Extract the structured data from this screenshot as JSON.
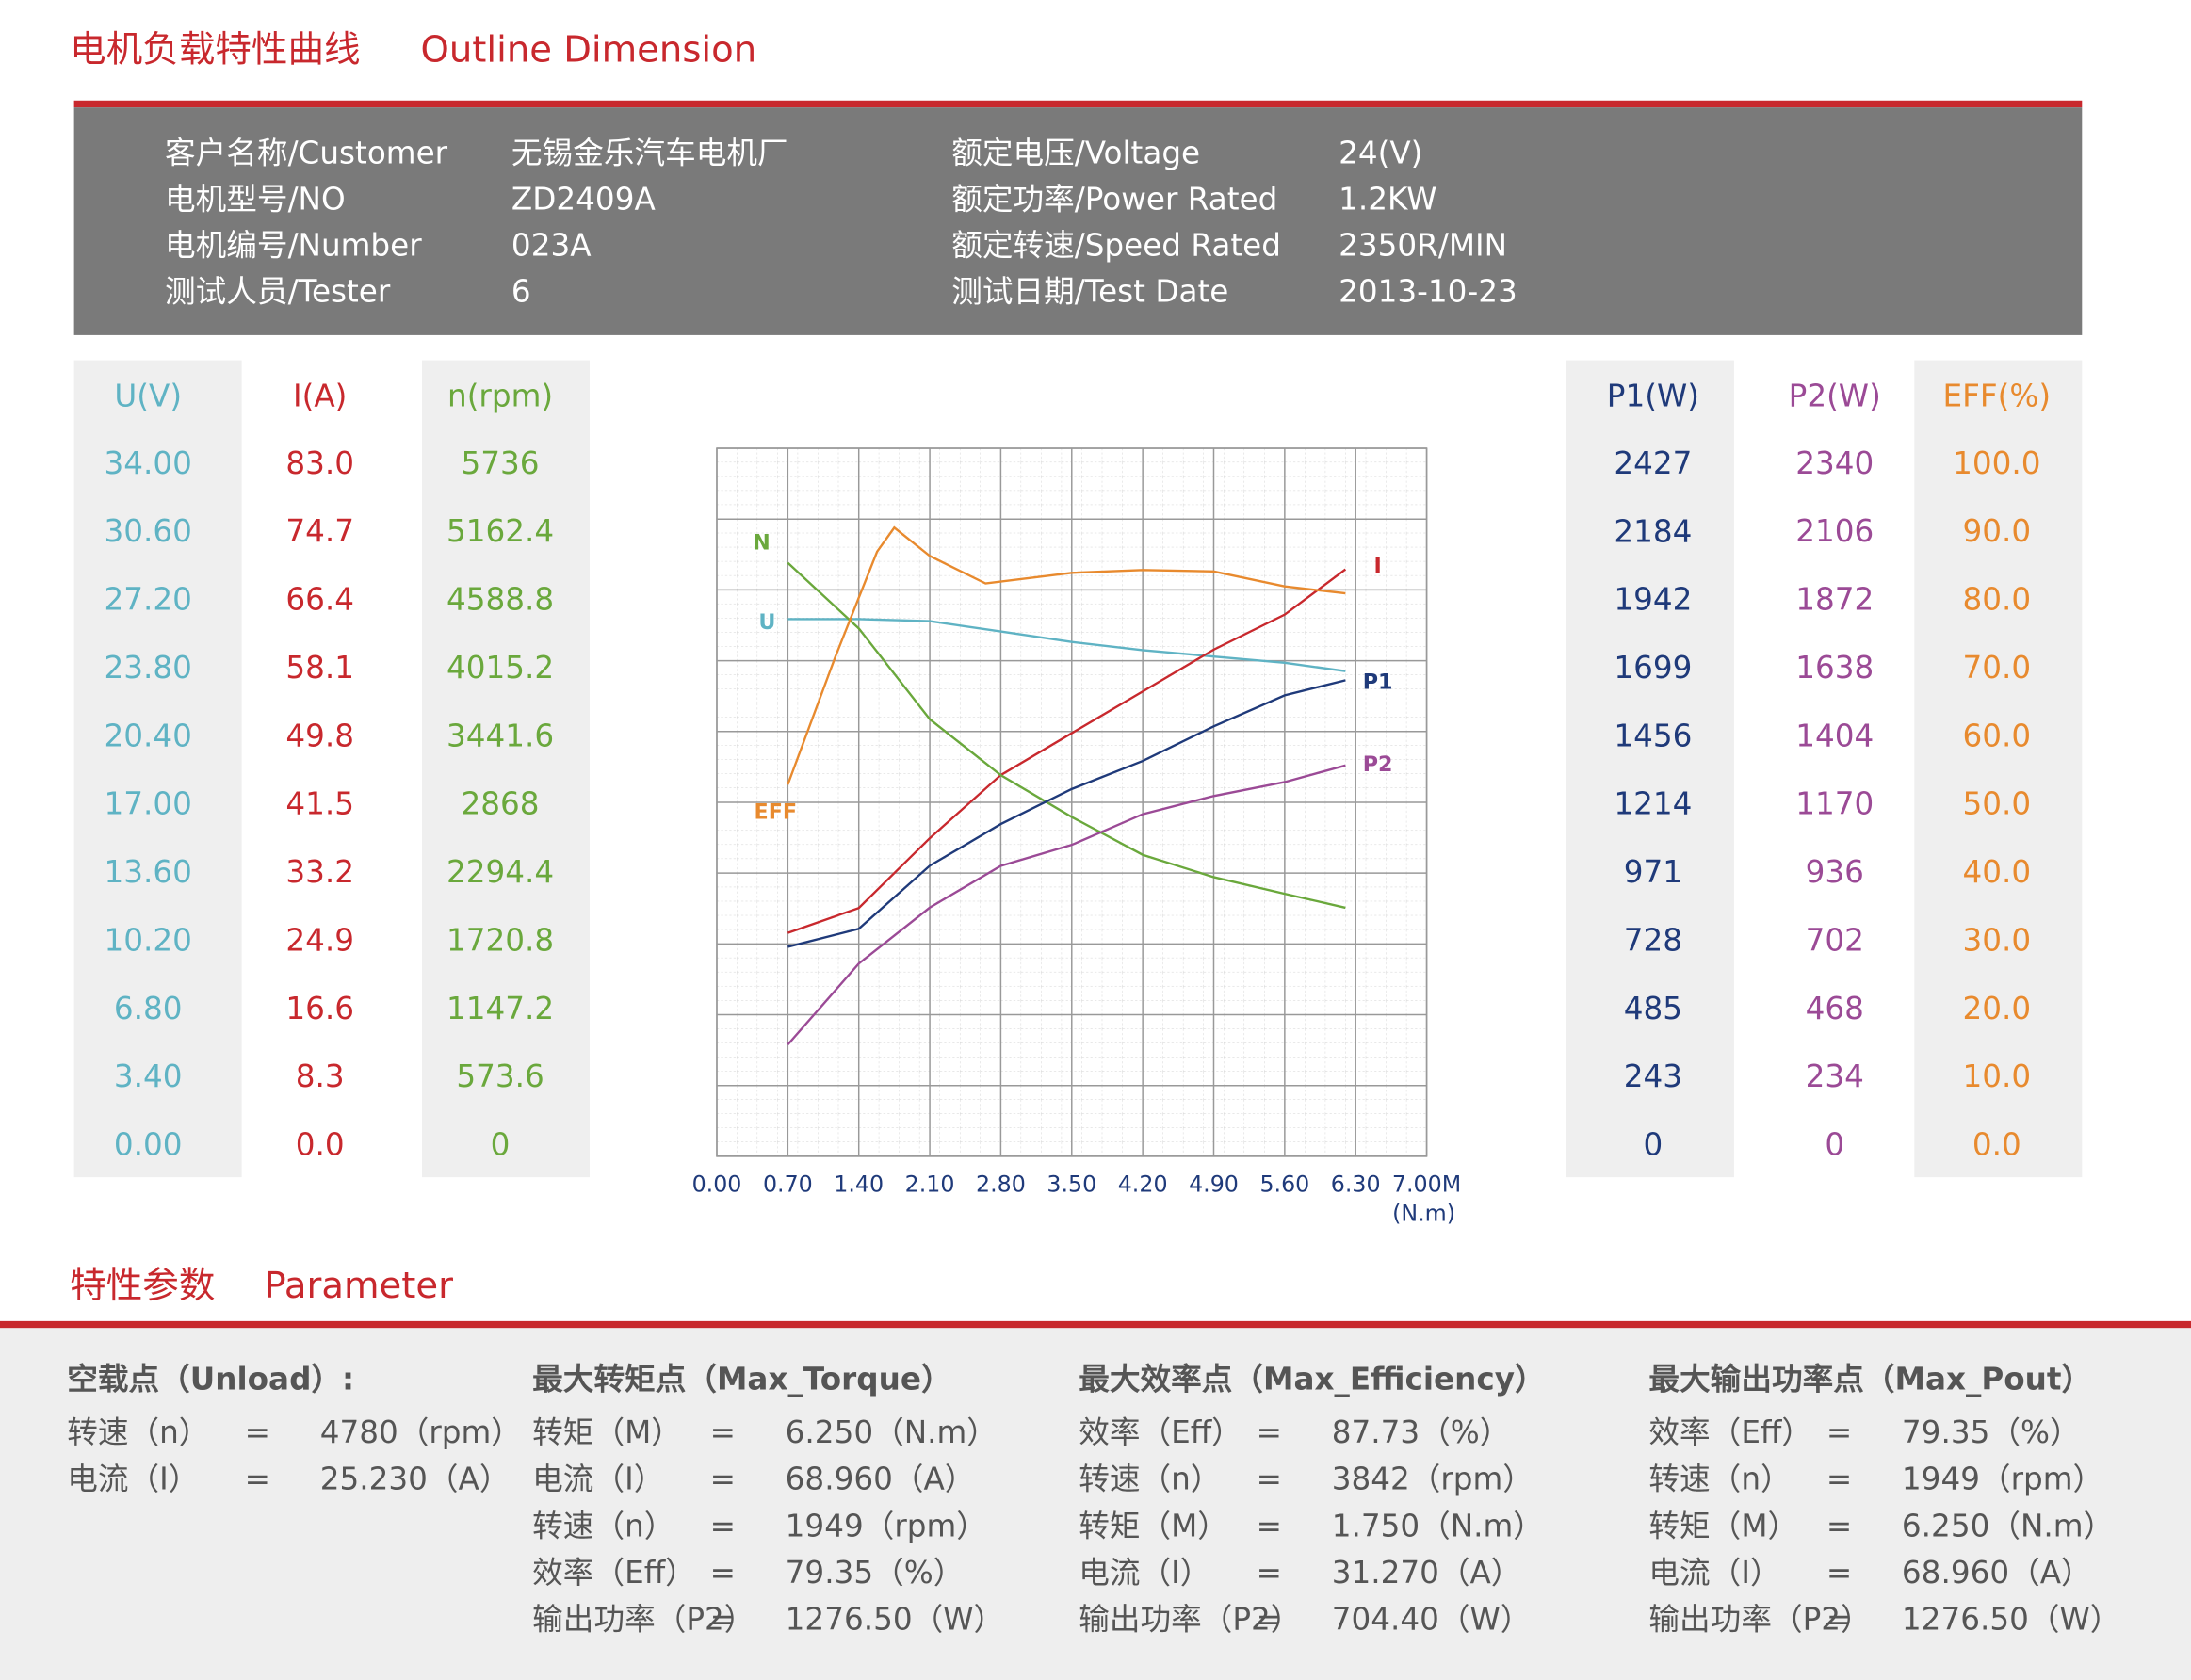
{
  "header": {
    "title_cn": "电机负载特性曲线",
    "title_en": "Outline Dimension"
  },
  "info": {
    "rows": [
      [
        "客户名称/Customer",
        "无锡金乐汽车电机厂",
        "额定电压/Voltage",
        "24(V)"
      ],
      [
        "电机型号/NO",
        "ZD2409A",
        "额定功率/Power Rated",
        "1.2KW"
      ],
      [
        "电机编号/Number",
        "023A",
        "额定转速/Speed Rated",
        "2350R/MIN"
      ],
      [
        "测试人员/Tester",
        "6",
        "测试日期/Test Date",
        "2013-10-23"
      ]
    ]
  },
  "chart_data": {
    "type": "line",
    "x_label": "(N.m)",
    "xlim": [
      0,
      7
    ],
    "grid": true,
    "xticks": [
      {
        "value": 0,
        "label": "0.00"
      },
      {
        "value": 0.7,
        "label": "0.70"
      },
      {
        "value": 1.4,
        "label": "1.40"
      },
      {
        "value": 2.1,
        "label": "2.10"
      },
      {
        "value": 2.8,
        "label": "2.80"
      },
      {
        "value": 3.5,
        "label": "3.50"
      },
      {
        "value": 4.2,
        "label": "4.20"
      },
      {
        "value": 4.9,
        "label": "4.90"
      },
      {
        "value": 5.6,
        "label": "5.60"
      },
      {
        "value": 6.3,
        "label": "6.30"
      },
      {
        "value": 7,
        "label": "7.00M"
      }
    ],
    "series": [
      {
        "name": "U",
        "axis_label": "U(V)",
        "color": "#5fb3c4",
        "ylim": [
          0,
          34
        ],
        "yticks": [
          {
            "value": 0,
            "label": "0.00"
          },
          {
            "value": 3.4,
            "label": "3.40"
          },
          {
            "value": 6.8,
            "label": "6.80"
          },
          {
            "value": 10.2,
            "label": "10.20"
          },
          {
            "value": 13.6,
            "label": "13.60"
          },
          {
            "value": 17,
            "label": "17.00"
          },
          {
            "value": 20.4,
            "label": "20.40"
          },
          {
            "value": 23.8,
            "label": "23.80"
          },
          {
            "value": 27.2,
            "label": "27.20"
          },
          {
            "value": 30.6,
            "label": "30.60"
          },
          {
            "value": 34,
            "label": "34.00"
          }
        ],
        "x": [
          0.7,
          1.4,
          2.1,
          2.8,
          3.5,
          4.2,
          4.9,
          5.6,
          6.2
        ],
        "values": [
          25.8,
          25.8,
          25.7,
          25.2,
          24.7,
          24.3,
          24.0,
          23.7,
          23.3
        ]
      },
      {
        "name": "I",
        "axis_label": "I(A)",
        "color": "#c8282d",
        "ylim": [
          0,
          83
        ],
        "yticks": [
          {
            "value": 0,
            "label": "0.0"
          },
          8.3,
          16.6,
          24.9,
          33.2,
          41.5,
          49.8,
          58.1,
          66.4,
          74.7,
          {
            "value": 83,
            "label": "83.0"
          }
        ],
        "x": [
          0.7,
          1.4,
          2.1,
          2.8,
          3.5,
          4.2,
          4.9,
          5.6,
          6.2
        ],
        "values": [
          26.2,
          29.1,
          37.3,
          44.7,
          49.6,
          54.5,
          59.4,
          63.5,
          68.8
        ]
      },
      {
        "name": "N",
        "axis_label": "n(rpm)",
        "color": "#6aa83c",
        "ylim": [
          0,
          5736
        ],
        "yticks": [
          0,
          573.6,
          1147.2,
          1720.8,
          2294.4,
          2868,
          3441.6,
          4015.2,
          4588.8,
          5162.4,
          5736
        ],
        "x": [
          0.7,
          1.4,
          2.1,
          2.8,
          3.5,
          4.2,
          4.9,
          5.6,
          6.2
        ],
        "values": [
          4808,
          4277,
          3541,
          3088,
          2749,
          2443,
          2262,
          2127,
          2014
        ]
      },
      {
        "name": "P1",
        "axis_label": "P1(W)",
        "color": "#1f3a7a",
        "ylim": [
          0,
          2427
        ],
        "yticks": [
          0,
          243,
          485,
          728,
          971,
          1214,
          1456,
          1699,
          1942,
          2184,
          2427
        ],
        "x": [
          0.7,
          1.4,
          2.1,
          2.8,
          3.5,
          4.2,
          4.9,
          5.6,
          6.2
        ],
        "values": [
          718,
          780,
          996,
          1139,
          1259,
          1355,
          1474,
          1580,
          1632
        ]
      },
      {
        "name": "P2",
        "axis_label": "P2(W)",
        "color": "#9b4a96",
        "ylim": [
          0,
          2340
        ],
        "yticks": [
          0,
          234,
          468,
          702,
          936,
          1170,
          1404,
          1638,
          1872,
          2106,
          2340
        ],
        "x": [
          0.7,
          1.4,
          2.1,
          2.8,
          3.5,
          4.2,
          4.9,
          5.6,
          6.2
        ],
        "values": [
          369,
          637,
          822,
          960,
          1029,
          1131,
          1191,
          1237,
          1292
        ]
      },
      {
        "name": "EFF",
        "axis_label": "EFF(%)",
        "color": "#e88a2e",
        "ylim": [
          0,
          100
        ],
        "yticks": [
          {
            "value": 0,
            "label": "0.0"
          },
          {
            "value": 10,
            "label": "10.0"
          },
          {
            "value": 20,
            "label": "20.0"
          },
          {
            "value": 30,
            "label": "30.0"
          },
          {
            "value": 40,
            "label": "40.0"
          },
          {
            "value": 50,
            "label": "50.0"
          },
          {
            "value": 60,
            "label": "60.0"
          },
          {
            "value": 70,
            "label": "70.0"
          },
          {
            "value": 80,
            "label": "80.0"
          },
          {
            "value": 90,
            "label": "90.0"
          },
          {
            "value": 100,
            "label": "100.0"
          }
        ],
        "x": [
          0.7,
          1.17,
          1.58,
          1.75,
          2.1,
          2.65,
          3.5,
          4.2,
          4.9,
          5.6,
          6.2
        ],
        "values": [
          52.5,
          70.6,
          85.4,
          88.8,
          84.8,
          80.9,
          82.4,
          82.8,
          82.6,
          80.5,
          79.5
        ]
      }
    ]
  },
  "parameters": {
    "title_cn": "特性参数",
    "title_en": "Parameter",
    "groups": [
      {
        "title": "空载点（Unload）:",
        "rows": [
          [
            "转速（n）",
            "=",
            "4780（rpm）"
          ],
          [
            "电流（I）",
            "=",
            "25.230（A）"
          ]
        ]
      },
      {
        "title": "最大转矩点（Max_Torque）",
        "rows": [
          [
            "转矩（M）",
            "=",
            "6.250（N.m）"
          ],
          [
            "电流（I）",
            "=",
            "68.960（A）"
          ],
          [
            "转速（n）",
            "=",
            "1949（rpm）"
          ],
          [
            "效率（Eff）",
            "=",
            "79.35（%）"
          ],
          [
            "输出功率（P2）",
            "=",
            "1276.50（W）"
          ]
        ]
      },
      {
        "title": "最大效率点（Max_Efficiency）",
        "rows": [
          [
            "效率（Eff）",
            "=",
            "87.73（%）"
          ],
          [
            "转速（n）",
            "=",
            "3842（rpm）"
          ],
          [
            "转矩（M）",
            "=",
            "1.750（N.m）"
          ],
          [
            "电流（I）",
            "=",
            "31.270（A）"
          ],
          [
            "输出功率（P2）",
            "=",
            "704.40（W）"
          ]
        ]
      },
      {
        "title": "最大输出功率点（Max_Pout）",
        "rows": [
          [
            "效率（Eff）",
            "=",
            "79.35（%）"
          ],
          [
            "转速（n）",
            "=",
            "1949（rpm）"
          ],
          [
            "转矩（M）",
            "=",
            "6.250（N.m）"
          ],
          [
            "电流（I）",
            "=",
            "68.960（A）"
          ],
          [
            "输出功率（P2）",
            "=",
            "1276.50（W）"
          ]
        ]
      }
    ]
  }
}
